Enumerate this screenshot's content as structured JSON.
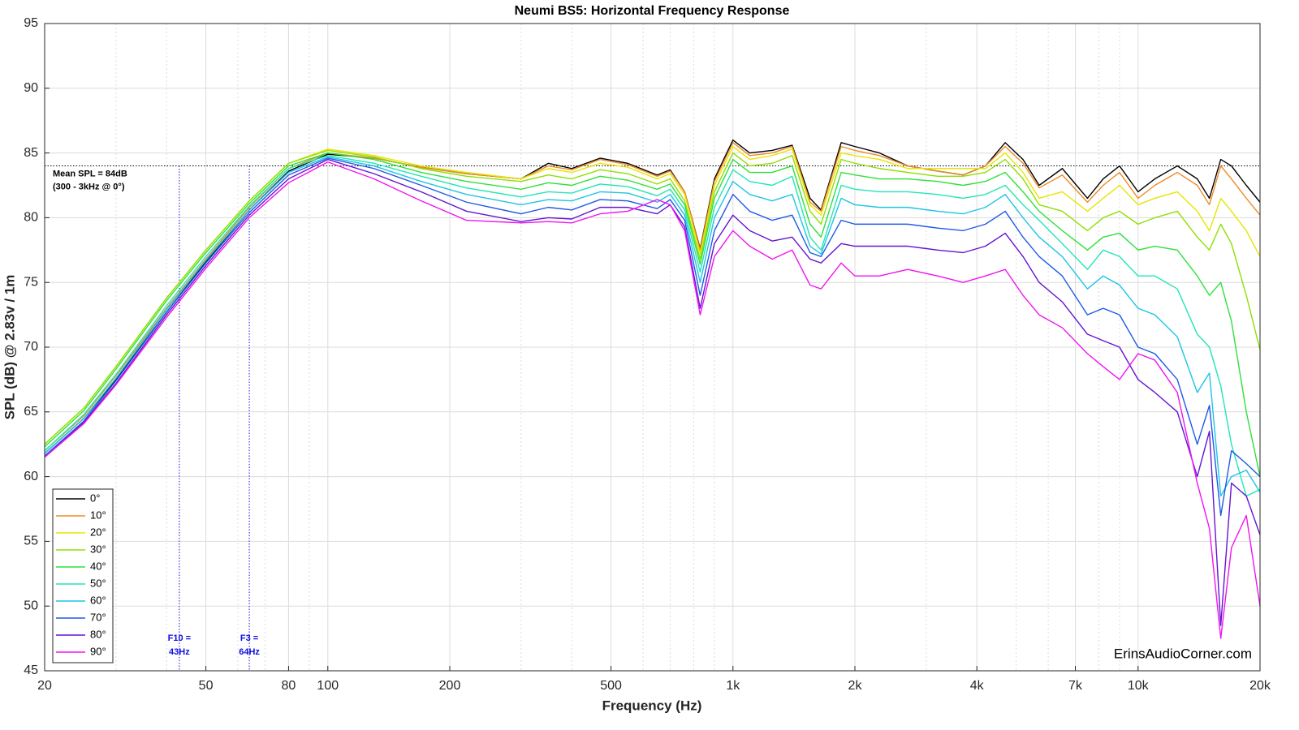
{
  "chart_data": {
    "type": "line",
    "title": "Neumi BS5: Horizontal Frequency Response",
    "xlabel": "Frequency (Hz)",
    "ylabel": "SPL (dB) @ 2.83v / 1m",
    "xscale": "log",
    "grid": true,
    "legend": "lower left",
    "watermark": "ErinsAudioCorner.com",
    "xlim": [
      20,
      20000
    ],
    "ylim": [
      45,
      95
    ],
    "xticks": [
      20,
      50,
      80,
      100,
      200,
      500,
      {
        "value": 1000,
        "label": "1k"
      },
      {
        "value": 2000,
        "label": "2k"
      },
      {
        "value": 4000,
        "label": "4k"
      },
      {
        "value": 7000,
        "label": "7k"
      },
      {
        "value": 10000,
        "label": "10k"
      },
      {
        "value": 20000,
        "label": "20k"
      }
    ],
    "xminor": [
      30,
      40,
      60,
      70,
      90,
      300,
      400,
      600,
      700,
      800,
      900,
      3000,
      5000,
      6000,
      8000,
      9000
    ],
    "yticks": [
      45,
      50,
      55,
      60,
      65,
      70,
      75,
      80,
      85,
      90,
      95
    ],
    "hline": {
      "y": 84,
      "label": [
        "Mean SPL = 84dB",
        "(300 - 3kHz @ 0°)"
      ]
    },
    "vlines": [
      {
        "x": 43,
        "label": [
          "F10 =",
          "43Hz"
        ]
      },
      {
        "x": 64,
        "label": [
          "F3 =",
          "64Hz"
        ]
      }
    ],
    "x": [
      20,
      25,
      30,
      40,
      50,
      64,
      80,
      100,
      130,
      170,
      220,
      300,
      350,
      400,
      470,
      550,
      650,
      700,
      760,
      830,
      900,
      1000,
      1100,
      1250,
      1400,
      1550,
      1650,
      1850,
      2000,
      2300,
      2700,
      3200,
      3700,
      4200,
      4700,
      5200,
      5700,
      6500,
      7500,
      8200,
      9000,
      10000,
      11000,
      12500,
      14000,
      15000,
      16000,
      17000,
      18500,
      20000
    ],
    "series": [
      {
        "name": "0°",
        "color": "#000000",
        "values": [
          61.8,
          64.5,
          67.5,
          72.7,
          76.6,
          80.6,
          83.6,
          84.9,
          84.6,
          83.9,
          83.4,
          83.0,
          84.2,
          83.8,
          84.6,
          84.2,
          83.3,
          83.7,
          82.0,
          77.6,
          83.0,
          86.0,
          85.0,
          85.2,
          85.6,
          81.5,
          80.6,
          85.8,
          85.5,
          85.0,
          84.0,
          83.6,
          83.3,
          84.0,
          85.8,
          84.5,
          82.5,
          83.8,
          81.5,
          83.0,
          84.0,
          82.0,
          83.0,
          84.0,
          83.0,
          81.5,
          84.5,
          84.0,
          82.5,
          81.2
        ]
      },
      {
        "name": "10°",
        "color": "#f08a24",
        "values": [
          62.0,
          64.7,
          67.8,
          73.0,
          76.8,
          80.8,
          83.8,
          85.0,
          84.6,
          83.9,
          83.4,
          83.0,
          84.0,
          83.7,
          84.5,
          84.1,
          83.2,
          83.6,
          82.0,
          77.5,
          82.8,
          85.8,
          84.8,
          85.0,
          85.5,
          81.2,
          80.5,
          85.5,
          85.2,
          84.8,
          84.0,
          83.6,
          83.3,
          84.0,
          85.5,
          84.2,
          82.3,
          83.3,
          81.2,
          82.5,
          83.5,
          81.5,
          82.5,
          83.5,
          82.5,
          81.0,
          84.0,
          83.0,
          81.5,
          80.2
        ]
      },
      {
        "name": "20°",
        "color": "#e6e600",
        "values": [
          62.5,
          65.3,
          68.5,
          73.8,
          77.5,
          81.3,
          84.2,
          85.3,
          84.8,
          84.0,
          83.5,
          83.0,
          83.8,
          83.5,
          84.2,
          83.9,
          83.0,
          83.4,
          81.8,
          77.2,
          82.5,
          85.5,
          84.5,
          84.8,
          85.3,
          81.0,
          80.2,
          85.0,
          84.8,
          84.5,
          83.8,
          83.8,
          83.8,
          83.8,
          85.0,
          83.5,
          81.5,
          82.0,
          80.5,
          81.5,
          82.5,
          81.0,
          81.5,
          82.0,
          80.5,
          79.0,
          81.5,
          80.5,
          79.0,
          77.0
        ]
      },
      {
        "name": "30°",
        "color": "#8ee000",
        "values": [
          62.5,
          65.3,
          68.5,
          73.8,
          77.5,
          81.3,
          84.2,
          85.2,
          84.7,
          83.8,
          83.2,
          82.8,
          83.3,
          83.0,
          83.7,
          83.4,
          82.6,
          83.0,
          81.3,
          76.8,
          82.0,
          85.0,
          84.0,
          84.2,
          84.8,
          80.5,
          79.5,
          84.5,
          84.2,
          83.8,
          83.5,
          83.2,
          83.2,
          83.5,
          84.5,
          83.0,
          81.0,
          80.5,
          79.0,
          80.0,
          80.5,
          79.5,
          80.0,
          80.5,
          78.5,
          77.5,
          79.5,
          78.0,
          74.0,
          69.8
        ]
      },
      {
        "name": "40°",
        "color": "#2ee03a",
        "values": [
          62.3,
          65.1,
          68.3,
          73.6,
          77.3,
          81.1,
          84.0,
          85.0,
          84.5,
          83.5,
          82.8,
          82.2,
          82.7,
          82.5,
          83.2,
          82.9,
          82.2,
          82.6,
          81.0,
          76.4,
          81.5,
          84.5,
          83.5,
          83.5,
          84.0,
          79.5,
          78.5,
          83.5,
          83.3,
          83.0,
          83.0,
          82.8,
          82.5,
          82.8,
          83.5,
          82.0,
          80.5,
          79.0,
          77.5,
          78.5,
          78.8,
          77.5,
          77.8,
          77.5,
          75.5,
          74.0,
          75.0,
          72.0,
          65.0,
          60.0
        ]
      },
      {
        "name": "50°",
        "color": "#22e6b4",
        "values": [
          62.0,
          64.8,
          67.9,
          73.2,
          77.0,
          80.9,
          83.8,
          84.8,
          84.2,
          83.2,
          82.3,
          81.6,
          82.0,
          81.9,
          82.6,
          82.4,
          81.7,
          82.2,
          80.6,
          75.8,
          80.8,
          83.7,
          82.8,
          82.5,
          83.2,
          78.5,
          77.5,
          82.5,
          82.2,
          82.0,
          82.0,
          81.8,
          81.5,
          81.8,
          82.5,
          81.0,
          79.8,
          78.0,
          76.0,
          77.5,
          77.0,
          75.5,
          75.5,
          74.5,
          71.0,
          70.0,
          67.0,
          62.5,
          58.5,
          59.0
        ]
      },
      {
        "name": "60°",
        "color": "#1ec4e6",
        "values": [
          61.8,
          64.5,
          67.6,
          72.9,
          76.7,
          80.6,
          83.5,
          84.7,
          84.0,
          82.8,
          81.8,
          81.0,
          81.4,
          81.3,
          82.0,
          81.9,
          81.2,
          81.8,
          80.2,
          75.0,
          80.0,
          82.8,
          81.8,
          81.3,
          81.8,
          77.8,
          77.2,
          81.5,
          81.0,
          80.8,
          80.8,
          80.5,
          80.3,
          80.8,
          81.8,
          80.0,
          78.5,
          77.0,
          74.5,
          75.5,
          74.8,
          73.0,
          72.5,
          70.8,
          66.5,
          68.0,
          58.5,
          60.0,
          60.5,
          58.8
        ]
      },
      {
        "name": "70°",
        "color": "#1e5ae6",
        "values": [
          61.6,
          64.3,
          67.4,
          72.7,
          76.5,
          80.4,
          83.3,
          84.6,
          83.8,
          82.5,
          81.2,
          80.3,
          80.8,
          80.6,
          81.4,
          81.3,
          80.7,
          81.4,
          79.8,
          74.0,
          79.0,
          81.8,
          80.5,
          79.8,
          80.2,
          77.3,
          77.0,
          79.8,
          79.5,
          79.5,
          79.5,
          79.2,
          79.0,
          79.5,
          80.5,
          78.5,
          77.0,
          75.5,
          72.5,
          73.0,
          72.5,
          70.0,
          69.5,
          67.5,
          62.5,
          65.5,
          57.0,
          62.0,
          61.0,
          60.0
        ]
      },
      {
        "name": "80°",
        "color": "#6414d2",
        "values": [
          61.5,
          64.2,
          67.2,
          72.5,
          76.3,
          80.2,
          83.0,
          84.5,
          83.4,
          82.0,
          80.5,
          79.7,
          80.0,
          79.9,
          80.8,
          80.8,
          80.3,
          81.0,
          79.3,
          73.0,
          78.0,
          80.2,
          79.0,
          78.2,
          78.5,
          76.8,
          76.5,
          78.0,
          77.8,
          77.8,
          77.8,
          77.5,
          77.3,
          77.8,
          78.8,
          77.0,
          75.0,
          73.5,
          71.0,
          70.5,
          70.0,
          67.5,
          66.5,
          65.0,
          60.0,
          63.5,
          48.5,
          59.5,
          58.5,
          55.5
        ]
      },
      {
        "name": "90°",
        "color": "#f014f0",
        "values": [
          61.5,
          64.1,
          67.1,
          72.3,
          76.1,
          80.0,
          82.7,
          84.3,
          83.0,
          81.3,
          79.8,
          79.6,
          79.7,
          79.6,
          80.3,
          80.5,
          81.4,
          81.0,
          79.0,
          72.5,
          77.0,
          79.0,
          77.8,
          76.8,
          77.5,
          74.8,
          74.5,
          76.5,
          75.5,
          75.5,
          76.0,
          75.5,
          75.0,
          75.5,
          76.0,
          74.0,
          72.5,
          71.5,
          69.5,
          68.5,
          67.5,
          69.5,
          69.0,
          66.5,
          59.5,
          56.0,
          47.5,
          54.5,
          57.0,
          50.0
        ]
      }
    ]
  }
}
